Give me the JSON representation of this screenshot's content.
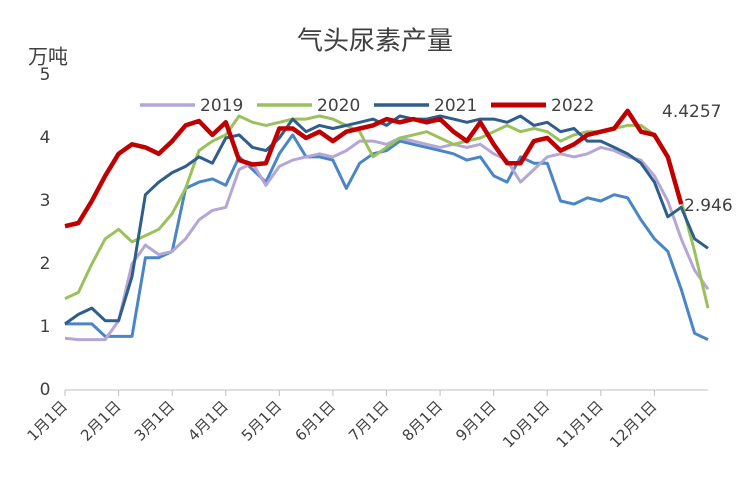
{
  "chart_data": {
    "type": "line",
    "title": "气头尿素产量",
    "y_label": "万吨",
    "categories": [
      "1月1日",
      null,
      null,
      null,
      "2月1日",
      null,
      null,
      null,
      "3月1日",
      null,
      null,
      null,
      "4月1日",
      null,
      null,
      null,
      "5月1日",
      null,
      null,
      null,
      "6月1日",
      null,
      null,
      null,
      "7月1日",
      null,
      null,
      null,
      "8月1日",
      null,
      null,
      null,
      "9月1日",
      null,
      null,
      null,
      "10月1日",
      null,
      null,
      null,
      "11月1日",
      null,
      null,
      null,
      "12月1日",
      null,
      null,
      null,
      null
    ],
    "ylim": [
      0,
      5
    ],
    "yticks": [
      0,
      1,
      2,
      3,
      4,
      5
    ],
    "legend": "top",
    "series": [
      {
        "color": "#4a86c5",
        "values": [
          1.05,
          1.05,
          1.05,
          0.85,
          0.85,
          0.85,
          2.1,
          2.1,
          2.2,
          3.2,
          3.3,
          3.35,
          3.25,
          3.7,
          3.5,
          3.3,
          3.75,
          4.05,
          3.7,
          3.7,
          3.65,
          3.2,
          3.6,
          3.75,
          3.8,
          3.95,
          3.9,
          3.85,
          3.8,
          3.75,
          3.65,
          3.7,
          3.4,
          3.3,
          3.7,
          3.6,
          3.6,
          3.0,
          2.95,
          3.05,
          3.0,
          3.1,
          3.05,
          2.7,
          2.4,
          2.2,
          1.6,
          0.9,
          0.8
        ]
      },
      {
        "name": "2019",
        "color": "#b4a7d6",
        "values": [
          0.82,
          0.8,
          0.8,
          0.8,
          1.1,
          2.0,
          2.3,
          2.15,
          2.2,
          2.4,
          2.7,
          2.85,
          2.9,
          3.5,
          3.6,
          3.25,
          3.55,
          3.65,
          3.7,
          3.75,
          3.7,
          3.8,
          3.95,
          3.95,
          3.9,
          4.0,
          3.95,
          3.9,
          3.85,
          3.9,
          3.85,
          3.9,
          3.75,
          3.65,
          3.3,
          3.5,
          3.7,
          3.75,
          3.7,
          3.75,
          3.85,
          3.8,
          3.7,
          3.65,
          3.4,
          3.0,
          2.4,
          1.9,
          1.6
        ]
      },
      {
        "name": "2020",
        "color": "#9bc15c",
        "values": [
          1.45,
          1.55,
          2.0,
          2.4,
          2.55,
          2.35,
          2.45,
          2.55,
          2.8,
          3.2,
          3.8,
          3.95,
          4.05,
          4.35,
          4.25,
          4.2,
          4.25,
          4.3,
          4.3,
          4.35,
          4.3,
          4.2,
          4.1,
          3.7,
          3.85,
          4.0,
          4.05,
          4.1,
          4.0,
          3.9,
          3.95,
          4.0,
          4.1,
          4.2,
          4.1,
          4.15,
          4.1,
          3.95,
          4.05,
          4.1,
          4.1,
          4.15,
          4.2,
          4.2,
          4.05,
          3.7,
          3.0,
          2.2,
          1.3
        ]
      },
      {
        "name": "2021",
        "color": "#2f5d8c",
        "values": [
          1.05,
          1.2,
          1.3,
          1.1,
          1.1,
          1.8,
          3.1,
          3.3,
          3.45,
          3.55,
          3.7,
          3.6,
          4.0,
          4.05,
          3.85,
          3.8,
          4.0,
          4.3,
          4.1,
          4.2,
          4.15,
          4.2,
          4.25,
          4.3,
          4.2,
          4.35,
          4.3,
          4.3,
          4.35,
          4.3,
          4.25,
          4.3,
          4.3,
          4.25,
          4.35,
          4.2,
          4.25,
          4.1,
          4.15,
          3.95,
          3.95,
          3.85,
          3.75,
          3.6,
          3.3,
          2.75,
          2.9,
          2.4,
          2.25
        ]
      },
      {
        "name": "2022",
        "color": "#c00000",
        "values": [
          2.6,
          2.65,
          3.0,
          3.4,
          3.75,
          3.9,
          3.85,
          3.75,
          3.95,
          4.2,
          4.27,
          4.05,
          4.25,
          3.65,
          3.58,
          3.6,
          4.15,
          4.15,
          4.0,
          4.1,
          3.95,
          4.1,
          4.15,
          4.2,
          4.3,
          4.25,
          4.3,
          4.25,
          4.3,
          4.1,
          3.95,
          4.25,
          3.9,
          3.6,
          3.6,
          3.95,
          4.0,
          3.8,
          3.9,
          4.05,
          4.1,
          4.15,
          4.43,
          4.1,
          4.05,
          3.7,
          2.95,
          null,
          null
        ]
      }
    ],
    "annotations": [
      "4.4257",
      "2.946"
    ]
  }
}
